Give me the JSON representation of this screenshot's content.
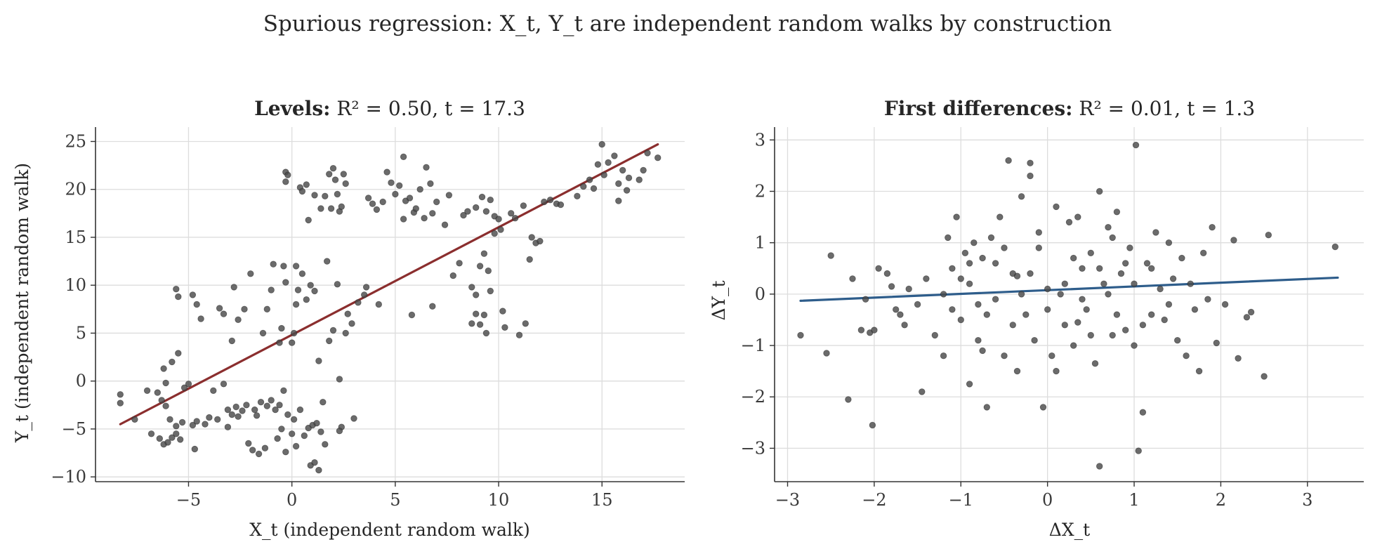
{
  "figure_title": "Spurious regression: X_t, Y_t are independent random walks by construction",
  "chart_data": [
    {
      "type": "scatter",
      "title_bold": "Levels:",
      "title_stats": "R² = 0.50, t = 17.3",
      "xlabel": "X_t (independent random walk)",
      "ylabel": "Y_t (independent random walk)",
      "xlim": [
        -9.5,
        19
      ],
      "ylim": [
        -10.5,
        26.5
      ],
      "xticks": [
        -5,
        0,
        5,
        10,
        15
      ],
      "yticks": [
        -10,
        -5,
        0,
        5,
        10,
        15,
        20,
        25
      ],
      "grid": true,
      "point_color": "#4a4a4a",
      "fit_color": "#8b2e2e",
      "fit_line": {
        "x": [
          -8.3,
          17.7
        ],
        "y": [
          -4.5,
          24.7
        ]
      },
      "points": [
        [
          -8.3,
          -1.4
        ],
        [
          -8.3,
          -2.3
        ],
        [
          -7.6,
          -4.0
        ],
        [
          -7.0,
          -1.0
        ],
        [
          -6.8,
          -5.5
        ],
        [
          -6.5,
          -1.2
        ],
        [
          -6.3,
          -2.0
        ],
        [
          -6.1,
          -2.6
        ],
        [
          -6.4,
          -6.0
        ],
        [
          -6.2,
          -6.6
        ],
        [
          -6.0,
          -6.4
        ],
        [
          -5.8,
          -5.9
        ],
        [
          -5.6,
          -5.5
        ],
        [
          -5.4,
          -6.1
        ],
        [
          -5.9,
          -4.0
        ],
        [
          -5.6,
          -4.7
        ],
        [
          -5.3,
          -4.3
        ],
        [
          -6.2,
          1.3
        ],
        [
          -6.1,
          -0.2
        ],
        [
          -5.8,
          2.0
        ],
        [
          -5.5,
          2.9
        ],
        [
          -5.6,
          9.6
        ],
        [
          -5.5,
          8.8
        ],
        [
          -5.2,
          -0.7
        ],
        [
          -5.0,
          -0.3
        ],
        [
          -4.8,
          -4.6
        ],
        [
          -4.7,
          -7.1
        ],
        [
          -4.6,
          -4.2
        ],
        [
          -4.8,
          9.0
        ],
        [
          -4.6,
          8.0
        ],
        [
          -4.4,
          6.5
        ],
        [
          -4.2,
          -4.5
        ],
        [
          -4.0,
          -3.8
        ],
        [
          -3.8,
          -1.0
        ],
        [
          -3.6,
          -4.0
        ],
        [
          -3.5,
          7.6
        ],
        [
          -3.3,
          -0.3
        ],
        [
          -3.1,
          -3.0
        ],
        [
          -2.9,
          -3.5
        ],
        [
          -2.7,
          -2.7
        ],
        [
          -3.3,
          7.0
        ],
        [
          -3.1,
          -4.8
        ],
        [
          -2.8,
          9.8
        ],
        [
          -2.9,
          4.2
        ],
        [
          -2.6,
          -3.7
        ],
        [
          -2.4,
          -3.1
        ],
        [
          -2.2,
          -2.5
        ],
        [
          -2.6,
          6.4
        ],
        [
          -2.3,
          7.5
        ],
        [
          -2.1,
          -6.5
        ],
        [
          -2.0,
          11.2
        ],
        [
          -1.8,
          -3.0
        ],
        [
          -1.7,
          -3.6
        ],
        [
          -1.5,
          -2.2
        ],
        [
          -1.9,
          -7.2
        ],
        [
          -1.6,
          -7.6
        ],
        [
          -1.3,
          -7.0
        ],
        [
          -1.2,
          -2.6
        ],
        [
          -1.0,
          -2.0
        ],
        [
          -1.4,
          5.0
        ],
        [
          -1.2,
          7.5
        ],
        [
          -1.0,
          9.5
        ],
        [
          -0.9,
          12.2
        ],
        [
          -0.8,
          -3.0
        ],
        [
          -0.6,
          -2.5
        ],
        [
          -0.4,
          -1.0
        ],
        [
          -0.5,
          -5.0
        ],
        [
          -0.3,
          -7.4
        ],
        [
          -0.7,
          -6.0
        ],
        [
          -0.6,
          4.0
        ],
        [
          -0.5,
          5.5
        ],
        [
          -0.3,
          10.3
        ],
        [
          -0.4,
          12.0
        ],
        [
          -0.2,
          -3.5
        ],
        [
          0.0,
          -5.5
        ],
        [
          0.1,
          -4.0
        ],
        [
          0.2,
          -6.8
        ],
        [
          0.0,
          4.0
        ],
        [
          0.1,
          5.0
        ],
        [
          0.2,
          8.0
        ],
        [
          0.3,
          9.5
        ],
        [
          0.2,
          12.0
        ],
        [
          0.5,
          11.2
        ],
        [
          0.4,
          -3.0
        ],
        [
          0.6,
          -5.7
        ],
        [
          0.8,
          -4.9
        ],
        [
          1.0,
          -4.6
        ],
        [
          1.2,
          -4.4
        ],
        [
          1.4,
          -5.3
        ],
        [
          0.9,
          -8.8
        ],
        [
          1.1,
          -8.5
        ],
        [
          1.3,
          -9.3
        ],
        [
          0.7,
          8.5
        ],
        [
          0.9,
          10.0
        ],
        [
          1.1,
          9.4
        ],
        [
          1.3,
          2.1
        ],
        [
          1.5,
          -2.2
        ],
        [
          1.6,
          -6.6
        ],
        [
          1.8,
          4.2
        ],
        [
          1.7,
          12.5
        ],
        [
          2.0,
          5.3
        ],
        [
          2.2,
          10.1
        ],
        [
          2.3,
          0.2
        ],
        [
          2.4,
          -4.8
        ],
        [
          2.3,
          -5.2
        ],
        [
          2.6,
          5.0
        ],
        [
          2.7,
          7.0
        ],
        [
          2.9,
          6.0
        ],
        [
          3.0,
          -3.9
        ],
        [
          3.2,
          8.2
        ],
        [
          3.5,
          9.0
        ],
        [
          3.6,
          9.8
        ],
        [
          4.2,
          8.0
        ],
        [
          -0.3,
          21.8
        ],
        [
          -0.2,
          21.5
        ],
        [
          -0.3,
          20.8
        ],
        [
          0.4,
          20.2
        ],
        [
          0.5,
          19.8
        ],
        [
          0.7,
          20.5
        ],
        [
          0.8,
          16.8
        ],
        [
          1.1,
          19.4
        ],
        [
          1.4,
          18.0
        ],
        [
          1.6,
          19.3
        ],
        [
          1.8,
          21.6
        ],
        [
          1.9,
          18.0
        ],
        [
          2.0,
          22.2
        ],
        [
          2.1,
          21.0
        ],
        [
          2.2,
          19.5
        ],
        [
          2.3,
          17.7
        ],
        [
          2.4,
          18.2
        ],
        [
          2.5,
          21.6
        ],
        [
          2.6,
          20.6
        ],
        [
          3.7,
          19.1
        ],
        [
          3.9,
          18.5
        ],
        [
          4.1,
          17.9
        ],
        [
          4.4,
          18.7
        ],
        [
          4.6,
          21.8
        ],
        [
          4.8,
          20.7
        ],
        [
          5.0,
          19.5
        ],
        [
          5.2,
          20.4
        ],
        [
          5.4,
          23.4
        ],
        [
          5.5,
          18.8
        ],
        [
          5.7,
          19.1
        ],
        [
          5.9,
          17.6
        ],
        [
          6.0,
          18.0
        ],
        [
          6.2,
          20.0
        ],
        [
          6.4,
          17.0
        ],
        [
          6.5,
          22.3
        ],
        [
          6.7,
          20.6
        ],
        [
          5.4,
          16.9
        ],
        [
          5.8,
          6.9
        ],
        [
          6.8,
          17.5
        ],
        [
          7.0,
          18.7
        ],
        [
          7.4,
          16.3
        ],
        [
          7.6,
          19.4
        ],
        [
          6.8,
          7.8
        ],
        [
          7.8,
          11.0
        ],
        [
          8.1,
          12.3
        ],
        [
          8.3,
          17.3
        ],
        [
          8.5,
          17.7
        ],
        [
          8.7,
          6.0
        ],
        [
          8.9,
          7.0
        ],
        [
          9.1,
          5.9
        ],
        [
          9.3,
          6.9
        ],
        [
          9.4,
          5.0
        ],
        [
          9.6,
          9.4
        ],
        [
          8.7,
          9.8
        ],
        [
          8.9,
          9.0
        ],
        [
          9.1,
          12.0
        ],
        [
          9.3,
          13.3
        ],
        [
          9.5,
          11.5
        ],
        [
          8.9,
          18.1
        ],
        [
          9.2,
          19.2
        ],
        [
          9.4,
          17.7
        ],
        [
          9.6,
          18.9
        ],
        [
          9.8,
          17.2
        ],
        [
          10.0,
          16.9
        ],
        [
          9.8,
          15.4
        ],
        [
          10.1,
          15.8
        ],
        [
          10.2,
          7.3
        ],
        [
          10.3,
          5.6
        ],
        [
          10.6,
          17.5
        ],
        [
          10.8,
          17.0
        ],
        [
          11.0,
          4.8
        ],
        [
          11.2,
          18.3
        ],
        [
          11.3,
          6.0
        ],
        [
          11.5,
          12.7
        ],
        [
          11.6,
          15.0
        ],
        [
          11.8,
          14.4
        ],
        [
          12.0,
          14.6
        ],
        [
          12.2,
          18.7
        ],
        [
          12.5,
          18.9
        ],
        [
          12.8,
          18.5
        ],
        [
          13.0,
          18.4
        ],
        [
          13.8,
          19.3
        ],
        [
          14.1,
          20.3
        ],
        [
          14.4,
          21.0
        ],
        [
          14.6,
          20.1
        ],
        [
          14.8,
          22.6
        ],
        [
          15.0,
          24.7
        ],
        [
          15.1,
          21.5
        ],
        [
          15.3,
          22.8
        ],
        [
          15.6,
          23.5
        ],
        [
          15.8,
          20.6
        ],
        [
          16.0,
          22.0
        ],
        [
          16.2,
          19.9
        ],
        [
          16.3,
          21.2
        ],
        [
          16.8,
          21.0
        ],
        [
          17.0,
          22.0
        ],
        [
          17.2,
          23.8
        ],
        [
          17.7,
          23.3
        ],
        [
          15.8,
          18.8
        ]
      ]
    },
    {
      "type": "scatter",
      "title_bold": "First differences:",
      "title_stats": "R² = 0.01, t = 1.3",
      "xlabel": "ΔX_t",
      "ylabel": "ΔY_t",
      "xlim": [
        -3.15,
        3.65
      ],
      "ylim": [
        -3.65,
        3.25
      ],
      "xticks": [
        -3,
        -2,
        -1,
        0,
        1,
        2,
        3
      ],
      "yticks": [
        -3,
        -2,
        -1,
        0,
        1,
        2,
        3
      ],
      "grid": true,
      "point_color": "#4a4a4a",
      "fit_color": "#2e5d8b",
      "fit_line": {
        "x": [
          -2.85,
          3.35
        ],
        "y": [
          -0.13,
          0.32
        ]
      },
      "points": [
        [
          -2.85,
          -0.8
        ],
        [
          -2.55,
          -1.15
        ],
        [
          -2.5,
          0.75
        ],
        [
          -2.3,
          -2.05
        ],
        [
          -2.25,
          0.3
        ],
        [
          -2.15,
          -0.7
        ],
        [
          -2.1,
          -0.1
        ],
        [
          -2.05,
          -0.75
        ],
        [
          -2.02,
          -2.55
        ],
        [
          -2.0,
          -0.7
        ],
        [
          -1.95,
          0.5
        ],
        [
          -1.85,
          0.4
        ],
        [
          -1.8,
          0.15
        ],
        [
          -1.75,
          -0.3
        ],
        [
          -1.7,
          -0.4
        ],
        [
          -1.65,
          -0.6
        ],
        [
          -1.6,
          0.1
        ],
        [
          -1.5,
          -0.2
        ],
        [
          -1.45,
          -1.9
        ],
        [
          -1.4,
          0.3
        ],
        [
          -1.3,
          -0.8
        ],
        [
          -1.2,
          -1.2
        ],
        [
          -1.15,
          1.1
        ],
        [
          -1.1,
          0.5
        ],
        [
          -1.05,
          1.5
        ],
        [
          -1.0,
          -0.5
        ],
        [
          -0.95,
          0.8
        ],
        [
          -0.9,
          -1.75
        ],
        [
          -0.9,
          0.2
        ],
        [
          -0.85,
          1.0
        ],
        [
          -0.8,
          -0.9
        ],
        [
          -0.75,
          0.7
        ],
        [
          -0.7,
          -2.2
        ],
        [
          -0.65,
          1.1
        ],
        [
          -0.6,
          -0.1
        ],
        [
          -0.55,
          1.5
        ],
        [
          -0.5,
          -1.2
        ],
        [
          -0.45,
          2.6
        ],
        [
          -0.4,
          0.4
        ],
        [
          -0.35,
          -1.5
        ],
        [
          -0.3,
          1.9
        ],
        [
          -0.25,
          -0.4
        ],
        [
          -0.2,
          2.3
        ],
        [
          -0.2,
          2.55
        ],
        [
          -0.15,
          -0.9
        ],
        [
          -0.1,
          0.9
        ],
        [
          -0.05,
          -2.2
        ],
        [
          0.0,
          0.1
        ],
        [
          0.05,
          -1.2
        ],
        [
          0.1,
          1.7
        ],
        [
          0.15,
          0.0
        ],
        [
          0.2,
          -0.6
        ],
        [
          0.25,
          1.4
        ],
        [
          0.3,
          -1.0
        ],
        [
          0.35,
          1.5
        ],
        [
          0.4,
          0.5
        ],
        [
          0.45,
          -0.3
        ],
        [
          0.5,
          0.8
        ],
        [
          0.55,
          -1.35
        ],
        [
          0.6,
          2.0
        ],
        [
          0.6,
          -3.35
        ],
        [
          0.65,
          0.2
        ],
        [
          0.7,
          1.3
        ],
        [
          0.75,
          -0.8
        ],
        [
          0.8,
          1.6
        ],
        [
          0.85,
          0.4
        ],
        [
          0.9,
          -0.7
        ],
        [
          0.95,
          0.9
        ],
        [
          1.0,
          -1.0
        ],
        [
          1.02,
          2.9
        ],
        [
          1.05,
          -3.05
        ],
        [
          1.1,
          -2.3
        ],
        [
          1.15,
          0.6
        ],
        [
          1.2,
          -0.4
        ],
        [
          1.25,
          1.2
        ],
        [
          1.3,
          0.1
        ],
        [
          1.35,
          -0.5
        ],
        [
          1.4,
          1.0
        ],
        [
          1.45,
          0.3
        ],
        [
          1.5,
          -0.9
        ],
        [
          1.55,
          0.7
        ],
        [
          1.6,
          -1.2
        ],
        [
          1.65,
          0.2
        ],
        [
          1.7,
          -0.3
        ],
        [
          1.75,
          -1.5
        ],
        [
          1.8,
          0.8
        ],
        [
          1.85,
          -0.1
        ],
        [
          1.9,
          1.3
        ],
        [
          1.95,
          -0.95
        ],
        [
          2.05,
          -0.2
        ],
        [
          2.15,
          1.05
        ],
        [
          2.2,
          -1.25
        ],
        [
          2.3,
          -0.45
        ],
        [
          2.35,
          -0.35
        ],
        [
          2.5,
          -1.6
        ],
        [
          2.55,
          1.15
        ],
        [
          3.32,
          0.92
        ],
        [
          -1.2,
          0.0
        ],
        [
          -1.0,
          0.3
        ],
        [
          -0.8,
          -0.2
        ],
        [
          -0.6,
          0.6
        ],
        [
          -0.4,
          -0.6
        ],
        [
          -0.2,
          0.4
        ],
        [
          0.0,
          -0.3
        ],
        [
          0.2,
          0.2
        ],
        [
          0.4,
          -0.1
        ],
        [
          0.6,
          0.5
        ],
        [
          0.8,
          -0.4
        ],
        [
          1.0,
          0.2
        ],
        [
          1.2,
          0.5
        ],
        [
          1.4,
          -0.2
        ],
        [
          -0.7,
          -0.4
        ],
        [
          -0.3,
          0.0
        ],
        [
          0.3,
          0.7
        ],
        [
          0.7,
          0.0
        ],
        [
          -0.5,
          0.9
        ],
        [
          0.5,
          -0.8
        ],
        [
          -0.9,
          0.6
        ],
        [
          0.9,
          0.6
        ],
        [
          -0.1,
          1.2
        ],
        [
          0.1,
          -1.5
        ],
        [
          -1.1,
          -0.3
        ],
        [
          1.1,
          -0.6
        ],
        [
          0.35,
          -0.55
        ],
        [
          -0.35,
          0.35
        ],
        [
          0.75,
          1.1
        ],
        [
          -0.75,
          -1.1
        ]
      ]
    }
  ]
}
